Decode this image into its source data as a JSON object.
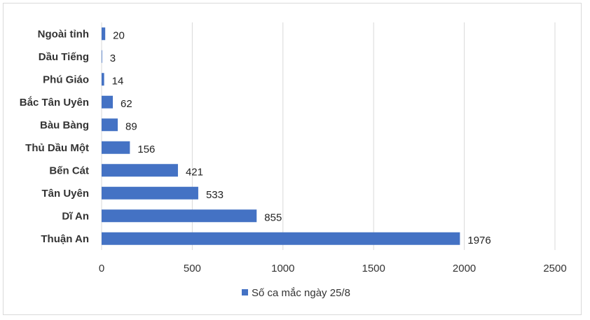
{
  "chart_data": {
    "type": "bar",
    "orientation": "horizontal",
    "categories": [
      "Ngoài tỉnh",
      "Dầu Tiếng",
      "Phú Giáo",
      "Bắc Tân Uyên",
      "Bàu Bàng",
      "Thủ Dầu Một",
      "Bến Cát",
      "Tân Uyên",
      "Dĩ An",
      "Thuận An"
    ],
    "series": [
      {
        "name": "Số ca mắc ngày 25/8",
        "values": [
          20,
          3,
          14,
          62,
          89,
          156,
          421,
          533,
          855,
          1976
        ],
        "color": "#4472c4"
      }
    ],
    "xlim": [
      0,
      2500
    ],
    "xticks": [
      "0",
      "500",
      "1000",
      "1500",
      "2000",
      "2500"
    ],
    "xlabel": "",
    "ylabel": "",
    "title": "",
    "grid": true,
    "legend_position": "bottom",
    "data_labels": true
  }
}
